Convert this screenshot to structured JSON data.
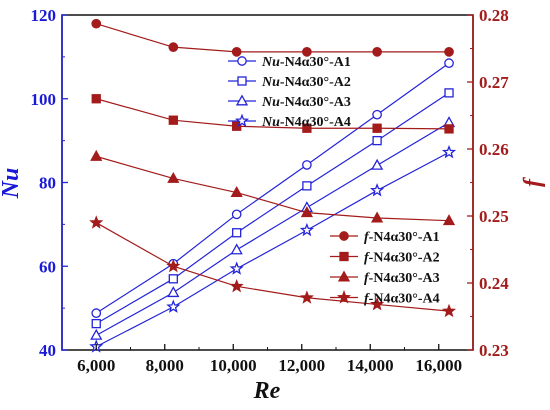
{
  "chart_data": {
    "type": "line",
    "xlabel": "Re",
    "ylabel_left": "Nu",
    "ylabel_right": "f",
    "x": [
      6000,
      8250,
      10100,
      12150,
      14200,
      16300
    ],
    "x_ticks": [
      6000,
      8000,
      10000,
      12000,
      14000,
      16000
    ],
    "x_tick_labels": [
      "6,000",
      "8,000",
      "10,000",
      "12,000",
      "14,000",
      "16,000"
    ],
    "xlim": [
      5000,
      17000
    ],
    "ylim_left": [
      40,
      120
    ],
    "yticks_left": [
      40,
      60,
      80,
      100,
      120
    ],
    "ylim_right": [
      0.23,
      0.28
    ],
    "yticks_right": [
      0.23,
      0.24,
      0.25,
      0.26,
      0.27,
      0.28
    ],
    "nu_color": "#2424d9",
    "f_color": "#a31b1b",
    "nu_series": [
      {
        "name_prefix": "Nu",
        "name_suffix": "-N4α30°-A1",
        "marker": "circle",
        "values": [
          48.8,
          60.6,
          72.4,
          84.2,
          96.2,
          108.5
        ]
      },
      {
        "name_prefix": "Nu",
        "name_suffix": "-N4α30°-A2",
        "marker": "square",
        "values": [
          46.3,
          57.0,
          68.0,
          79.2,
          90.0,
          101.4
        ]
      },
      {
        "name_prefix": "Nu",
        "name_suffix": "-N4α30°-A3",
        "marker": "triangle",
        "values": [
          43.5,
          53.7,
          63.9,
          74.0,
          84.1,
          94.3
        ]
      },
      {
        "name_prefix": "Nu",
        "name_suffix": "-N4α30°-A4",
        "marker": "star",
        "values": [
          40.8,
          50.3,
          59.4,
          68.6,
          78.1,
          87.2
        ]
      }
    ],
    "f_series": [
      {
        "name_prefix": "f",
        "name_suffix": "-N4α30°-A1",
        "marker": "circle",
        "values": [
          0.2787,
          0.2752,
          0.2745,
          0.2745,
          0.2745,
          0.2745
        ]
      },
      {
        "name_prefix": "f",
        "name_suffix": "-N4α30°-A2",
        "marker": "square",
        "values": [
          0.2675,
          0.2643,
          0.2634,
          0.2631,
          0.2631,
          0.263
        ]
      },
      {
        "name_prefix": "f",
        "name_suffix": "-N4α30°-A3",
        "marker": "triangle",
        "values": [
          0.2589,
          0.2556,
          0.2535,
          0.2505,
          0.2497,
          0.2493
        ]
      },
      {
        "name_prefix": "f",
        "name_suffix": "-N4α30°-A4",
        "marker": "star",
        "values": [
          0.249,
          0.2425,
          0.2395,
          0.2378,
          0.2368,
          0.2358
        ]
      }
    ]
  }
}
